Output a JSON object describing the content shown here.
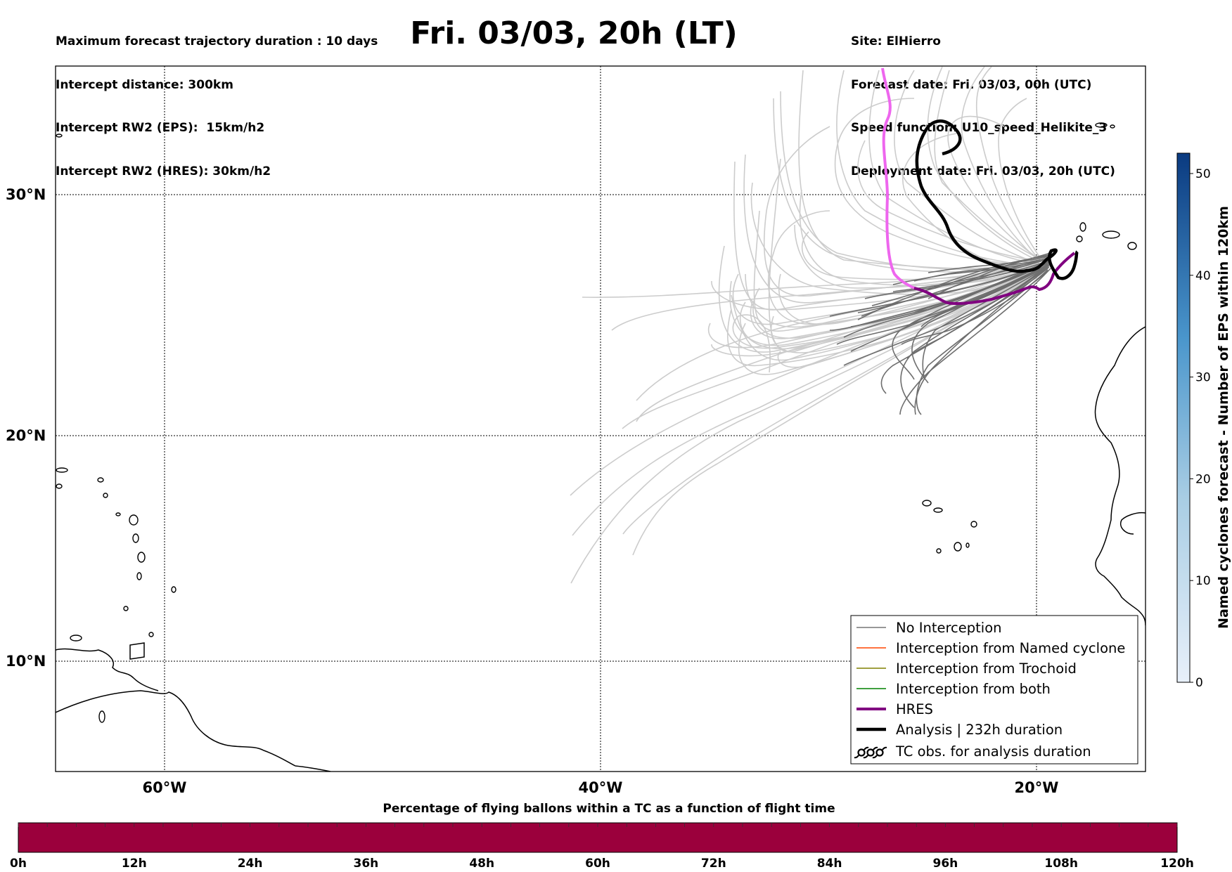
{
  "header": {
    "left_lines": [
      "Maximum forecast trajectory duration : 10 days",
      "Intercept distance: 300km",
      "Intercept RW2 (EPS):  15km/h2",
      "Intercept RW2 (HRES): 30km/h2"
    ],
    "title": "Fri. 03/03, 20h (LT)",
    "right_lines": [
      "Site: ElHierro",
      "Forecast date: Fri. 03/03, 00h (UTC)",
      "Speed function: U10_speed_Helikite_3",
      "Deployment date: Fri. 03/03, 20h (UTC)"
    ]
  },
  "map": {
    "lat_ticks": [
      "30°N",
      "20°N",
      "10°N"
    ],
    "lon_ticks": [
      "60°W",
      "40°W",
      "20°W"
    ],
    "gridlines": true,
    "colors": {
      "no_interception": "#777777",
      "named_cyclone": "#ff4500",
      "trochoid": "#808000",
      "both": "#008000",
      "hres": "#800080",
      "hres_early": "#ee66ee",
      "analysis": "#000000",
      "ensemble_faded": "#cccccc"
    }
  },
  "legend": {
    "items": [
      {
        "label": "No Interception",
        "color": "#777777"
      },
      {
        "label": "Interception from Named cyclone",
        "color": "#ff4500"
      },
      {
        "label": "Interception from Trochoid",
        "color": "#808000"
      },
      {
        "label": "Interception from both",
        "color": "#008000"
      },
      {
        "label": "HRES",
        "color": "#800080"
      },
      {
        "label": "Analysis | 232h duration",
        "color": "#000000"
      },
      {
        "label": "TC obs. for analysis duration",
        "icon": "tc-symbol-icon"
      }
    ]
  },
  "colorbar": {
    "label": "Named cyclones forecast - Number of EPS within 120km",
    "ticks": [
      "0",
      "10",
      "20",
      "30",
      "40",
      "50"
    ],
    "min": 0,
    "max": 52
  },
  "flight_bar": {
    "title": "Percentage of flying ballons within a TC as a function of flight time",
    "ticks": [
      "0h",
      "12h",
      "24h",
      "36h",
      "48h",
      "60h",
      "72h",
      "84h",
      "96h",
      "108h",
      "120h"
    ],
    "fill_color": "#9b003c"
  }
}
